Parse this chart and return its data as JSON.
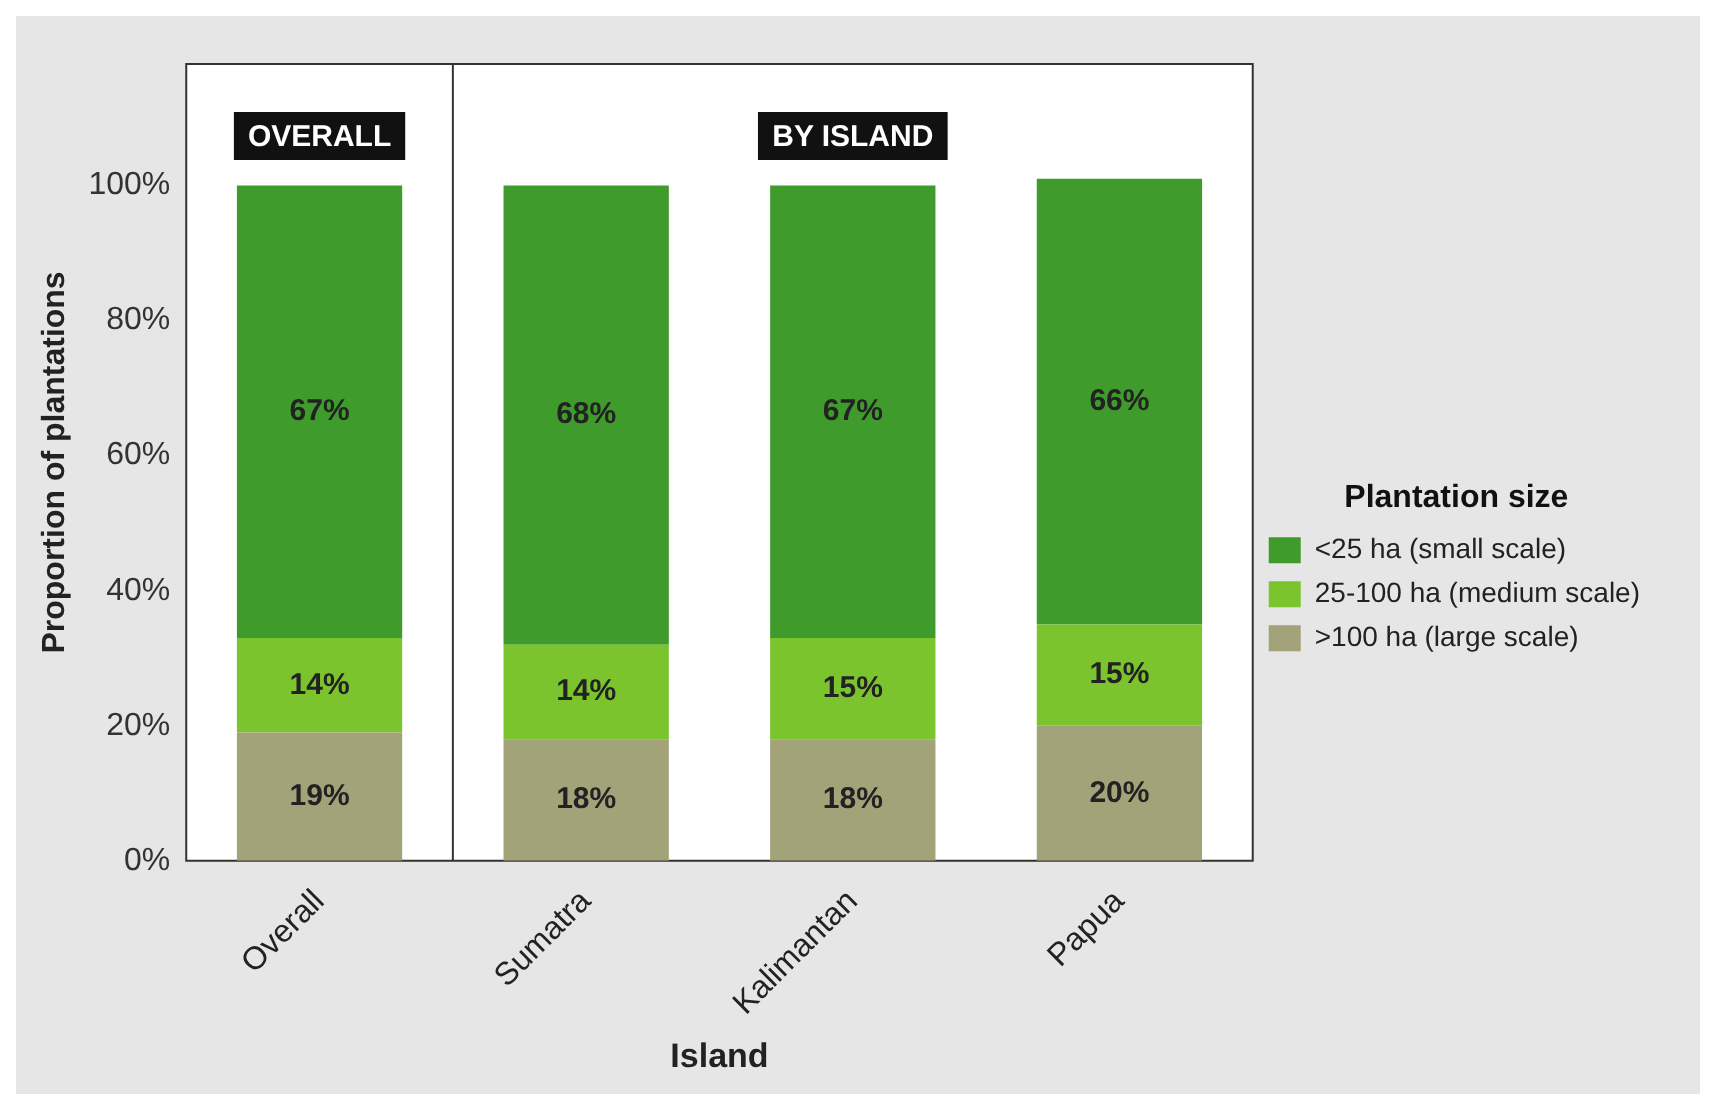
{
  "chart_data": {
    "type": "bar",
    "stacked": true,
    "categories": [
      "Overall",
      "Sumatra",
      "Kalimantan",
      "Papua"
    ],
    "series": [
      {
        "name": ">100 ha (large scale)",
        "color": "#a3a37a",
        "values": [
          19,
          18,
          18,
          20
        ],
        "value_labels": [
          "19%",
          "18%",
          "18%",
          "20%"
        ]
      },
      {
        "name": "25-100 ha (medium scale)",
        "color": "#7cc42e",
        "values": [
          14,
          14,
          15,
          15
        ],
        "value_labels": [
          "14%",
          "14%",
          "15%",
          "15%"
        ]
      },
      {
        "name": "<25 ha (small scale)",
        "color": "#3f9c2c",
        "values": [
          67,
          68,
          67,
          66
        ],
        "value_labels": [
          "67%",
          "68%",
          "67%",
          "66%"
        ]
      }
    ],
    "xlabel": "Island",
    "ylabel": "Proportion of plantations",
    "legend_title": "Plantation size",
    "legend": "right",
    "grid": false,
    "ylim": [
      0,
      118
    ],
    "yticks": [
      {
        "value": 0,
        "label": "0%"
      },
      {
        "value": 20,
        "label": "20%"
      },
      {
        "value": 40,
        "label": "40%"
      },
      {
        "value": 60,
        "label": "60%"
      },
      {
        "value": 80,
        "label": "80%"
      },
      {
        "value": 100,
        "label": "100%"
      }
    ],
    "annotations": [
      "OVERALL",
      "BY ISLAND"
    ]
  }
}
